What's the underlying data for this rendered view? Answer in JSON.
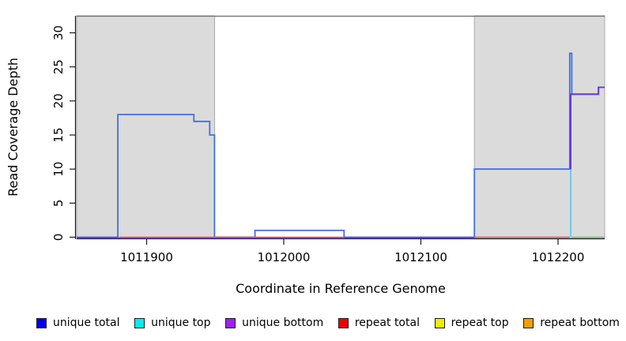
{
  "figure": {
    "background": "#ffffff",
    "plot_bg": "#ffffff",
    "shade_fill": "#dbdbdb",
    "shade_border": "#a9a9a9",
    "top_border_color": "#6e6e6e",
    "axis_color": "#1a1a1a"
  },
  "chart_data": {
    "type": "line",
    "title": "",
    "xlabel": "Coordinate in Reference Genome",
    "ylabel": "Read Coverage Depth",
    "x_range": [
      1011849,
      1012234
    ],
    "y_range": [
      0,
      32.5
    ],
    "x_ticks": [
      1011900,
      1012000,
      1012100,
      1012200
    ],
    "y_ticks": [
      0,
      5,
      10,
      15,
      20,
      25,
      30
    ],
    "grid": false,
    "legend_position": "bottom",
    "shaded_regions": [
      {
        "name": "repeat-region-left",
        "x0": 1011849,
        "x1": 1011949.6
      },
      {
        "name": "repeat-region-right",
        "x0": 1012139,
        "x1": 1012234
      }
    ],
    "series": [
      {
        "name": "unique total",
        "color": "#4070e6",
        "w": 1.8,
        "segs": [
          {
            "pts": [
              [
                1011849,
                0
              ],
              [
                1011879,
                0
              ],
              [
                1011879,
                18
              ],
              [
                1011934.5,
                18
              ],
              [
                1011934.5,
                17
              ],
              [
                1011946,
                17
              ],
              [
                1011946,
                15
              ],
              [
                1011949.5,
                15
              ],
              [
                1011949.5,
                0
              ],
              [
                1011979,
                0
              ],
              [
                1011979,
                1
              ],
              [
                1012044,
                1
              ],
              [
                1012044,
                0
              ],
              [
                1012139,
                0
              ],
              [
                1012139,
                10
              ],
              [
                1012208.5,
                10
              ],
              [
                1012208.5,
                27
              ],
              [
                1012210,
                27
              ],
              [
                1012210,
                21
              ],
              [
                1012229.5,
                21
              ],
              [
                1012229.5,
                22
              ],
              [
                1012234,
                22
              ]
            ]
          }
        ]
      },
      {
        "name": "unique top",
        "color": "#5fc8ee",
        "w": 1.8,
        "segs": [
          {
            "pts": [
              [
                1012209.3,
                0
              ],
              [
                1012209.3,
                10
              ]
            ]
          }
        ]
      },
      {
        "name": "unique bottom",
        "color": "#6633e0",
        "w": 1.8,
        "segs": [
          {
            "dy": 1,
            "pts": [
              [
                1011849,
                0
              ],
              [
                1012139,
                0
              ]
            ]
          },
          {
            "pts": [
              [
                1012209.3,
                10
              ],
              [
                1012209.3,
                21
              ],
              [
                1012229.5,
                21
              ],
              [
                1012229.5,
                22
              ],
              [
                1012234,
                22
              ]
            ]
          }
        ]
      },
      {
        "name": "repeat total",
        "color": "#e85566",
        "w": 1.5,
        "segs": [
          {
            "pts": [
              [
                1011880,
                0
              ],
              [
                1012044,
                0
              ]
            ]
          },
          {
            "pts": [
              [
                1012139,
                0
              ],
              [
                1012208.5,
                0
              ]
            ]
          }
        ]
      },
      {
        "name": "baseline green",
        "color": "#77c477",
        "w": 1.5,
        "segs": [
          {
            "pts": [
              [
                1012210,
                0
              ],
              [
                1012234,
                0
              ]
            ]
          }
        ]
      }
    ],
    "legend": [
      {
        "label": "unique total",
        "color": "#0000ee"
      },
      {
        "label": "unique top",
        "color": "#00eeee"
      },
      {
        "label": "unique bottom",
        "color": "#a020f0"
      },
      {
        "label": "repeat total",
        "color": "#ee0000"
      },
      {
        "label": "repeat top",
        "color": "#eeee00"
      },
      {
        "label": "repeat bottom",
        "color": "#f0a000"
      }
    ]
  }
}
